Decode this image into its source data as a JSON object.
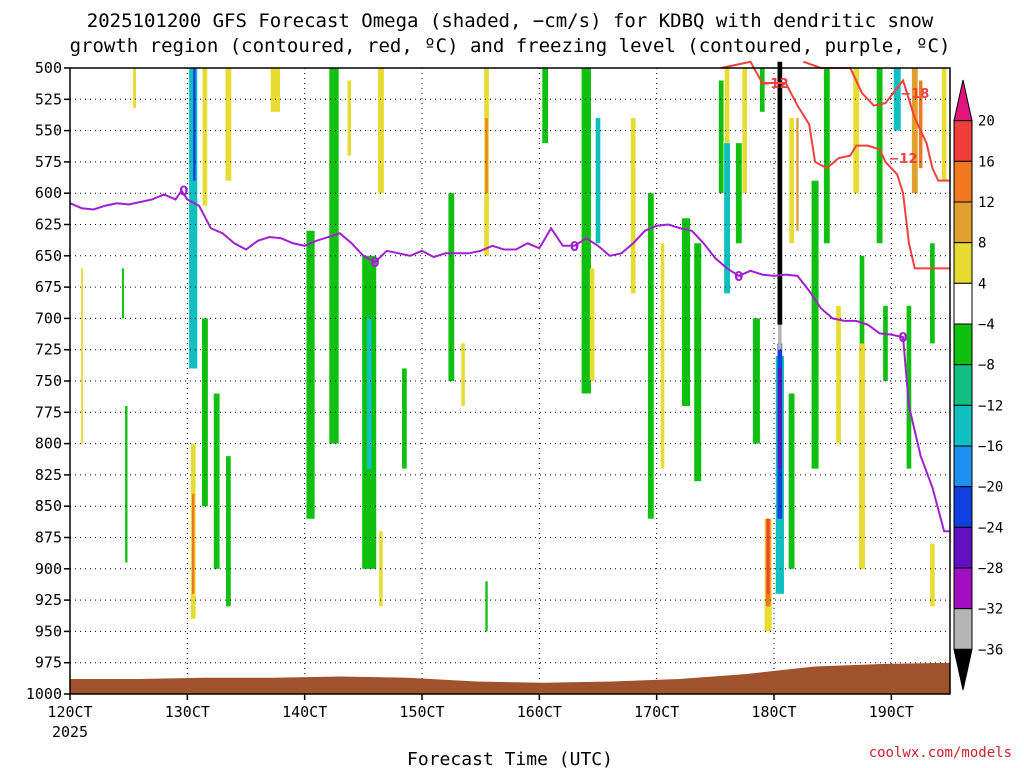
{
  "chart_data": {
    "type": "heatmap",
    "title_line1": "2025101200 GFS Forecast Omega (shaded, −cm/s) for KDBQ with dendritic snow",
    "title_line2": "growth region (contoured, red, ºC) and freezing level (contoured, purple, ºC)",
    "xlabel": "Forecast Time (UTC)",
    "credit": "coolwx.com/models",
    "x_ticks": [
      "120CT",
      "130CT",
      "140CT",
      "150CT",
      "160CT",
      "170CT",
      "180CT",
      "190CT"
    ],
    "x_tick_days": [
      12,
      13,
      14,
      15,
      16,
      17,
      18,
      19
    ],
    "x_year": "2025",
    "x_range_days": [
      12,
      19.5
    ],
    "y_ticks": [
      "500",
      "525",
      "550",
      "575",
      "600",
      "625",
      "650",
      "675",
      "700",
      "725",
      "750",
      "775",
      "800",
      "825",
      "850",
      "875",
      "900",
      "925",
      "950",
      "975",
      "1000"
    ],
    "y_tick_values": [
      500,
      525,
      550,
      575,
      600,
      625,
      650,
      675,
      700,
      725,
      750,
      775,
      800,
      825,
      850,
      875,
      900,
      925,
      950,
      975,
      1000
    ],
    "y_range_hpa": [
      500,
      1000
    ],
    "colorbar": {
      "labels": [
        "20",
        "16",
        "12",
        "8",
        "4",
        "−4",
        "−8",
        "−12",
        "−16",
        "−20",
        "−24",
        "−28",
        "−32",
        "−36"
      ],
      "colors": [
        "#e0147a",
        "#f03c3c",
        "#f07820",
        "#e0a030",
        "#e6dc32",
        "#ffffff",
        "#10c010",
        "#10c080",
        "#10c0c0",
        "#2090f0",
        "#1040e0",
        "#6010c0",
        "#a010c0",
        "#b4b4b4",
        "#000000"
      ]
    },
    "freezing_level": {
      "color": "#a020d0",
      "label": "0",
      "label_days": [
        12.97,
        14.6,
        16.3,
        17.7,
        19.1
      ],
      "points_day_hpa": [
        [
          12.0,
          608
        ],
        [
          12.1,
          612
        ],
        [
          12.2,
          613
        ],
        [
          12.3,
          610
        ],
        [
          12.4,
          608
        ],
        [
          12.5,
          609
        ],
        [
          12.6,
          607
        ],
        [
          12.7,
          605
        ],
        [
          12.8,
          601
        ],
        [
          12.9,
          605
        ],
        [
          12.95,
          598
        ],
        [
          13.0,
          605
        ],
        [
          13.1,
          610
        ],
        [
          13.2,
          628
        ],
        [
          13.3,
          632
        ],
        [
          13.4,
          640
        ],
        [
          13.5,
          645
        ],
        [
          13.6,
          638
        ],
        [
          13.7,
          635
        ],
        [
          13.8,
          636
        ],
        [
          13.9,
          640
        ],
        [
          14.0,
          642
        ],
        [
          14.1,
          638
        ],
        [
          14.2,
          635
        ],
        [
          14.3,
          632
        ],
        [
          14.4,
          640
        ],
        [
          14.5,
          650
        ],
        [
          14.6,
          655
        ],
        [
          14.7,
          646
        ],
        [
          14.8,
          648
        ],
        [
          14.9,
          650
        ],
        [
          15.0,
          646
        ],
        [
          15.1,
          651
        ],
        [
          15.2,
          648
        ],
        [
          15.3,
          648
        ],
        [
          15.4,
          648
        ],
        [
          15.5,
          646
        ],
        [
          15.6,
          642
        ],
        [
          15.7,
          645
        ],
        [
          15.8,
          645
        ],
        [
          15.9,
          640
        ],
        [
          16.0,
          644
        ],
        [
          16.1,
          628
        ],
        [
          16.2,
          642
        ],
        [
          16.3,
          642
        ],
        [
          16.4,
          636
        ],
        [
          16.5,
          642
        ],
        [
          16.6,
          650
        ],
        [
          16.7,
          648
        ],
        [
          16.8,
          640
        ],
        [
          16.9,
          630
        ],
        [
          17.0,
          626
        ],
        [
          17.1,
          625
        ],
        [
          17.2,
          628
        ],
        [
          17.3,
          630
        ],
        [
          17.4,
          640
        ],
        [
          17.5,
          652
        ],
        [
          17.6,
          660
        ],
        [
          17.7,
          666
        ],
        [
          17.8,
          662
        ],
        [
          17.9,
          665
        ],
        [
          18.0,
          666
        ],
        [
          18.1,
          665
        ],
        [
          18.2,
          666
        ],
        [
          18.3,
          678
        ],
        [
          18.4,
          692
        ],
        [
          18.5,
          700
        ],
        [
          18.6,
          702
        ],
        [
          18.7,
          702
        ],
        [
          18.8,
          705
        ],
        [
          18.9,
          712
        ],
        [
          19.0,
          713
        ],
        [
          19.1,
          715
        ],
        [
          19.15,
          770
        ],
        [
          19.25,
          810
        ],
        [
          19.35,
          835
        ],
        [
          19.45,
          870
        ],
        [
          19.5,
          870
        ]
      ]
    },
    "dgz_contours": {
      "color": "#f04040",
      "lines": [
        {
          "label": "−12",
          "points_day_hpa": [
            [
              17.55,
              500
            ],
            [
              17.8,
              495
            ],
            [
              17.9,
              512
            ],
            [
              18.1,
              512
            ],
            [
              18.2,
              530
            ],
            [
              18.3,
              545
            ],
            [
              18.35,
              575
            ],
            [
              18.45,
              580
            ],
            [
              18.55,
              572
            ],
            [
              18.65,
              570
            ],
            [
              18.7,
              562
            ],
            [
              18.8,
              562
            ],
            [
              18.9,
              565
            ],
            [
              18.95,
              575
            ],
            [
              19.05,
              585
            ],
            [
              19.1,
              600
            ],
            [
              19.15,
              640
            ],
            [
              19.2,
              660
            ],
            [
              19.3,
              660
            ],
            [
              19.5,
              660
            ]
          ]
        },
        {
          "label": "−18",
          "points_day_hpa": [
            [
              18.25,
              495
            ],
            [
              18.4,
              500
            ],
            [
              18.65,
              500
            ],
            [
              18.75,
              520
            ],
            [
              18.85,
              530
            ],
            [
              18.95,
              528
            ],
            [
              19.1,
              510
            ],
            [
              19.2,
              540
            ],
            [
              19.3,
              560
            ],
            [
              19.35,
              580
            ],
            [
              19.4,
              590
            ],
            [
              19.5,
              590
            ]
          ]
        }
      ],
      "label_positions_day_hpa": [
        [
          18.0,
          512
        ],
        [
          19.1,
          572
        ],
        [
          19.2,
          520
        ]
      ]
    },
    "surface": {
      "color": "#a0522d",
      "pressure_hpa": [
        988,
        988,
        987,
        987,
        986,
        987,
        990,
        991,
        990,
        988,
        984,
        978,
        976,
        975
      ]
    },
    "omega_cells": [
      {
        "d": 12.55,
        "p0": 500,
        "p1": 532,
        "w": 0.025,
        "c": "#e6dc32"
      },
      {
        "d": 12.48,
        "p0": 770,
        "p1": 895,
        "w": 0.02,
        "c": "#10c010"
      },
      {
        "d": 12.45,
        "p0": 660,
        "p1": 700,
        "w": 0.015,
        "c": "#10c010"
      },
      {
        "d": 12.1,
        "p0": 660,
        "p1": 800,
        "w": 0.01,
        "c": "#e6dc32"
      },
      {
        "d": 13.05,
        "p0": 500,
        "p1": 740,
        "w": 0.07,
        "c": "#10c0c0"
      },
      {
        "d": 13.06,
        "p0": 500,
        "p1": 590,
        "w": 0.02,
        "c": "#1040e0"
      },
      {
        "d": 13.05,
        "p0": 800,
        "p1": 940,
        "w": 0.04,
        "c": "#e6dc32"
      },
      {
        "d": 13.05,
        "p0": 840,
        "p1": 920,
        "w": 0.02,
        "c": "#f07820"
      },
      {
        "d": 13.15,
        "p0": 500,
        "p1": 610,
        "w": 0.04,
        "c": "#e6dc32"
      },
      {
        "d": 13.15,
        "p0": 700,
        "p1": 850,
        "w": 0.05,
        "c": "#10c010"
      },
      {
        "d": 13.25,
        "p0": 760,
        "p1": 900,
        "w": 0.05,
        "c": "#10c010"
      },
      {
        "d": 13.35,
        "p0": 810,
        "p1": 930,
        "w": 0.04,
        "c": "#10c010"
      },
      {
        "d": 13.35,
        "p0": 500,
        "p1": 590,
        "w": 0.05,
        "c": "#e6dc32"
      },
      {
        "d": 13.75,
        "p0": 500,
        "p1": 535,
        "w": 0.08,
        "c": "#e6dc32"
      },
      {
        "d": 14.05,
        "p0": 630,
        "p1": 860,
        "w": 0.07,
        "c": "#10c010"
      },
      {
        "d": 14.25,
        "p0": 500,
        "p1": 800,
        "w": 0.08,
        "c": "#10c010"
      },
      {
        "d": 14.38,
        "p0": 510,
        "p1": 570,
        "w": 0.03,
        "c": "#e6dc32"
      },
      {
        "d": 14.55,
        "p0": 650,
        "p1": 900,
        "w": 0.12,
        "c": "#10c010"
      },
      {
        "d": 14.55,
        "p0": 700,
        "p1": 820,
        "w": 0.04,
        "c": "#10c0c0"
      },
      {
        "d": 14.65,
        "p0": 500,
        "p1": 600,
        "w": 0.05,
        "c": "#e6dc32"
      },
      {
        "d": 14.65,
        "p0": 870,
        "p1": 930,
        "w": 0.03,
        "c": "#e6dc32"
      },
      {
        "d": 14.85,
        "p0": 740,
        "p1": 820,
        "w": 0.04,
        "c": "#10c010"
      },
      {
        "d": 15.25,
        "p0": 600,
        "p1": 750,
        "w": 0.05,
        "c": "#10c010"
      },
      {
        "d": 15.35,
        "p0": 720,
        "p1": 770,
        "w": 0.03,
        "c": "#e6dc32"
      },
      {
        "d": 15.55,
        "p0": 500,
        "p1": 650,
        "w": 0.04,
        "c": "#e6dc32"
      },
      {
        "d": 15.55,
        "p0": 540,
        "p1": 600,
        "w": 0.02,
        "c": "#f07820"
      },
      {
        "d": 15.55,
        "p0": 910,
        "p1": 950,
        "w": 0.02,
        "c": "#10c010"
      },
      {
        "d": 16.05,
        "p0": 500,
        "p1": 560,
        "w": 0.05,
        "c": "#10c010"
      },
      {
        "d": 16.4,
        "p0": 500,
        "p1": 760,
        "w": 0.08,
        "c": "#10c010"
      },
      {
        "d": 16.5,
        "p0": 540,
        "p1": 640,
        "w": 0.04,
        "c": "#10c0c0"
      },
      {
        "d": 16.45,
        "p0": 660,
        "p1": 750,
        "w": 0.04,
        "c": "#e6dc32"
      },
      {
        "d": 16.8,
        "p0": 540,
        "p1": 680,
        "w": 0.04,
        "c": "#e6dc32"
      },
      {
        "d": 16.95,
        "p0": 600,
        "p1": 860,
        "w": 0.05,
        "c": "#10c010"
      },
      {
        "d": 17.05,
        "p0": 640,
        "p1": 820,
        "w": 0.03,
        "c": "#e6dc32"
      },
      {
        "d": 17.25,
        "p0": 620,
        "p1": 770,
        "w": 0.07,
        "c": "#10c010"
      },
      {
        "d": 17.35,
        "p0": 640,
        "p1": 830,
        "w": 0.06,
        "c": "#10c010"
      },
      {
        "d": 17.55,
        "p0": 510,
        "p1": 600,
        "w": 0.04,
        "c": "#10c010"
      },
      {
        "d": 17.6,
        "p0": 560,
        "p1": 680,
        "w": 0.05,
        "c": "#10c0c0"
      },
      {
        "d": 17.6,
        "p0": 500,
        "p1": 560,
        "w": 0.04,
        "c": "#e6dc32"
      },
      {
        "d": 17.7,
        "p0": 560,
        "p1": 640,
        "w": 0.05,
        "c": "#10c010"
      },
      {
        "d": 17.75,
        "p0": 500,
        "p1": 600,
        "w": 0.04,
        "c": "#e6dc32"
      },
      {
        "d": 17.85,
        "p0": 700,
        "p1": 800,
        "w": 0.06,
        "c": "#10c010"
      },
      {
        "d": 17.9,
        "p0": 500,
        "p1": 535,
        "w": 0.04,
        "c": "#10c010"
      },
      {
        "d": 17.95,
        "p0": 860,
        "p1": 950,
        "w": 0.06,
        "c": "#e6dc32"
      },
      {
        "d": 17.95,
        "p0": 860,
        "p1": 930,
        "w": 0.04,
        "c": "#f07820"
      },
      {
        "d": 17.95,
        "p0": 860,
        "p1": 920,
        "w": 0.02,
        "c": "#f03c3c"
      },
      {
        "d": 18.05,
        "p0": 730,
        "p1": 920,
        "w": 0.07,
        "c": "#10c0c0"
      },
      {
        "d": 18.05,
        "p0": 720,
        "p1": 860,
        "w": 0.04,
        "c": "#1040e0"
      },
      {
        "d": 18.05,
        "p0": 740,
        "p1": 820,
        "w": 0.03,
        "c": "#6010c0"
      },
      {
        "d": 18.05,
        "p0": 705,
        "p1": 725,
        "w": 0.03,
        "c": "#b4b4b4"
      },
      {
        "d": 18.05,
        "p0": 495,
        "p1": 705,
        "w": 0.04,
        "c": "#000000"
      },
      {
        "d": 18.15,
        "p0": 760,
        "p1": 900,
        "w": 0.05,
        "c": "#10c010"
      },
      {
        "d": 18.15,
        "p0": 540,
        "p1": 640,
        "w": 0.04,
        "c": "#e6dc32"
      },
      {
        "d": 18.2,
        "p0": 540,
        "p1": 630,
        "w": 0.02,
        "c": "#e0a030"
      },
      {
        "d": 18.35,
        "p0": 590,
        "p1": 820,
        "w": 0.06,
        "c": "#10c010"
      },
      {
        "d": 18.45,
        "p0": 500,
        "p1": 640,
        "w": 0.05,
        "c": "#10c010"
      },
      {
        "d": 18.55,
        "p0": 690,
        "p1": 800,
        "w": 0.04,
        "c": "#e6dc32"
      },
      {
        "d": 18.7,
        "p0": 500,
        "p1": 600,
        "w": 0.05,
        "c": "#e6dc32"
      },
      {
        "d": 18.75,
        "p0": 720,
        "p1": 900,
        "w": 0.05,
        "c": "#e6dc32"
      },
      {
        "d": 18.75,
        "p0": 650,
        "p1": 720,
        "w": 0.04,
        "c": "#10c010"
      },
      {
        "d": 18.9,
        "p0": 500,
        "p1": 640,
        "w": 0.05,
        "c": "#10c010"
      },
      {
        "d": 18.95,
        "p0": 690,
        "p1": 750,
        "w": 0.04,
        "c": "#10c010"
      },
      {
        "d": 19.05,
        "p0": 500,
        "p1": 550,
        "w": 0.06,
        "c": "#10c0c0"
      },
      {
        "d": 19.15,
        "p0": 690,
        "p1": 820,
        "w": 0.04,
        "c": "#10c010"
      },
      {
        "d": 19.2,
        "p0": 500,
        "p1": 600,
        "w": 0.05,
        "c": "#e0a030"
      },
      {
        "d": 19.25,
        "p0": 510,
        "p1": 580,
        "w": 0.03,
        "c": "#f07820"
      },
      {
        "d": 19.35,
        "p0": 640,
        "p1": 720,
        "w": 0.04,
        "c": "#10c010"
      },
      {
        "d": 19.35,
        "p0": 880,
        "p1": 930,
        "w": 0.04,
        "c": "#e6dc32"
      },
      {
        "d": 19.45,
        "p0": 500,
        "p1": 590,
        "w": 0.04,
        "c": "#e6dc32"
      }
    ]
  }
}
